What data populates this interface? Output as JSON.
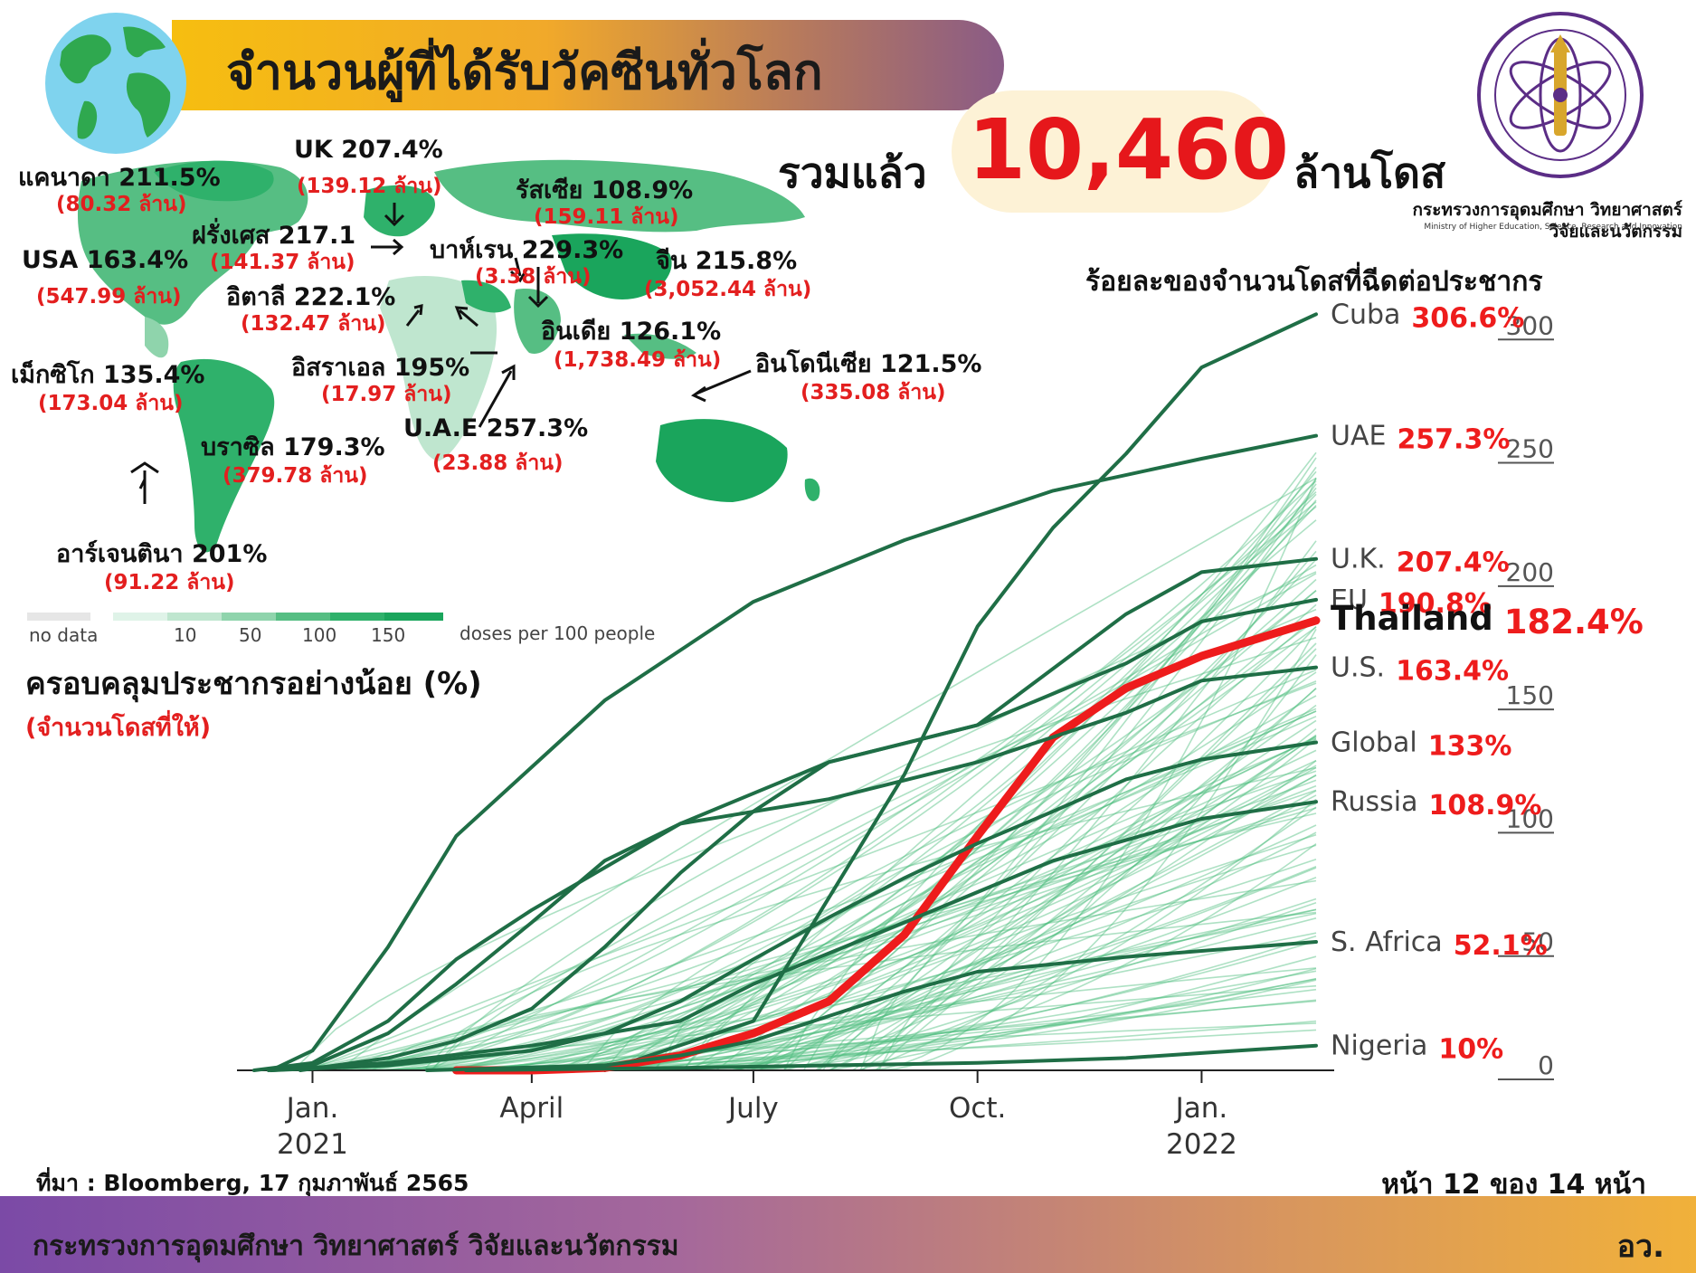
{
  "header": {
    "title": "จำนวนผู้ที่ได้รับวัคซีนทั่วโลก",
    "total_prefix": "รวมแล้ว",
    "total_value": "10,460",
    "total_suffix": "ล้านโดส"
  },
  "ministry": {
    "name_th": "กระทรวงการอุดมศึกษา วิทยาศาสตร์ วิจัยและนวัตกรรม",
    "name_en": "Ministry of Higher Education, Science, Research and Innovation"
  },
  "map": {
    "countries": [
      {
        "name": "แคนาดา",
        "pct": "211.5%",
        "doses": "(80.32 ล้าน)"
      },
      {
        "name": "UK",
        "pct": "207.4%",
        "doses": "(139.12 ล้าน)"
      },
      {
        "name": "รัสเซีย",
        "pct": "108.9%",
        "doses": "(159.11 ล้าน)"
      },
      {
        "name": "ฝรั่งเศส",
        "pct": "217.1",
        "doses": "(141.37 ล้าน)"
      },
      {
        "name": "บาห์เรน",
        "pct": "229.3%",
        "doses": "(3.38 ล้าน)"
      },
      {
        "name": "จีน",
        "pct": "215.8%",
        "doses": "(3,052.44 ล้าน)"
      },
      {
        "name": "USA",
        "pct": "163.4%",
        "doses": "(547.99 ล้าน)"
      },
      {
        "name": "อิตาลี",
        "pct": "222.1%",
        "doses": "(132.47 ล้าน)"
      },
      {
        "name": "อินเดีย",
        "pct": "126.1%",
        "doses": "(1,738.49 ล้าน)"
      },
      {
        "name": "อิสราเอล",
        "pct": "195%",
        "doses": "(17.97 ล้าน)"
      },
      {
        "name": "อินโดนีเซีย",
        "pct": "121.5%",
        "doses": "(335.08 ล้าน)"
      },
      {
        "name": "เม็กซิโก",
        "pct": "135.4%",
        "doses": "(173.04 ล้าน)"
      },
      {
        "name": "U.A.E",
        "pct": "257.3%",
        "doses": "(23.88 ล้าน)"
      },
      {
        "name": "บราซิล",
        "pct": "179.3%",
        "doses": "(379.78 ล้าน)"
      },
      {
        "name": "อาร์เจนตินา",
        "pct": "201%",
        "doses": "(91.22 ล้าน)"
      }
    ],
    "legend": {
      "no_data": "no data",
      "ticks": [
        "10",
        "50",
        "100",
        "150"
      ],
      "unit": "doses per 100 people",
      "colors": [
        "#e6e6e6",
        "#dff3e8",
        "#bfe6cf",
        "#8fd4ac",
        "#56be83",
        "#2fb16b",
        "#1aa55c"
      ]
    }
  },
  "coverage": {
    "title": "ครอบคลุมประชากรอย่างน้อย (%)",
    "subtitle": "(จำนวนโดสที่ให้)"
  },
  "chart_data": {
    "type": "line",
    "title": "ร้อยละของจำนวนโดสที่ฉีดต่อประชากร",
    "x_ticks": [
      {
        "label": "Jan.\n2021",
        "x": "2021-01-01"
      },
      {
        "label": "April",
        "x": "2021-04-01"
      },
      {
        "label": "July",
        "x": "2021-07-01"
      },
      {
        "label": "Oct.",
        "x": "2021-10-01"
      },
      {
        "label": "Jan.\n2022",
        "x": "2022-01-01"
      }
    ],
    "y_ticks": [
      0,
      50,
      100,
      150,
      200,
      250,
      300
    ],
    "ylim": [
      0,
      310
    ],
    "xlim": [
      "2020-12-01",
      "2022-02-17"
    ],
    "highlight_color": "#ee1c1c",
    "series": [
      {
        "name": "Cuba",
        "value_label": "306.6%",
        "points": [
          [
            "2021-05-01",
            0
          ],
          [
            "2021-07-01",
            20
          ],
          [
            "2021-08-01",
            70
          ],
          [
            "2021-09-01",
            120
          ],
          [
            "2021-10-01",
            180
          ],
          [
            "2021-11-01",
            220
          ],
          [
            "2021-12-01",
            250
          ],
          [
            "2022-01-01",
            285
          ],
          [
            "2022-02-17",
            306.6
          ]
        ]
      },
      {
        "name": "UAE",
        "value_label": "257.3%",
        "points": [
          [
            "2020-12-15",
            0
          ],
          [
            "2021-01-01",
            8
          ],
          [
            "2021-02-01",
            50
          ],
          [
            "2021-03-01",
            95
          ],
          [
            "2021-05-01",
            150
          ],
          [
            "2021-07-01",
            190
          ],
          [
            "2021-09-01",
            215
          ],
          [
            "2021-11-01",
            235
          ],
          [
            "2022-01-01",
            248
          ],
          [
            "2022-02-17",
            257.3
          ]
        ]
      },
      {
        "name": "U.K.",
        "value_label": "207.4%",
        "points": [
          [
            "2020-12-08",
            0
          ],
          [
            "2021-01-01",
            3
          ],
          [
            "2021-02-01",
            20
          ],
          [
            "2021-03-01",
            45
          ],
          [
            "2021-04-01",
            65
          ],
          [
            "2021-06-01",
            100
          ],
          [
            "2021-08-01",
            125
          ],
          [
            "2021-10-01",
            140
          ],
          [
            "2021-12-01",
            185
          ],
          [
            "2022-01-01",
            202
          ],
          [
            "2022-02-17",
            207.4
          ]
        ]
      },
      {
        "name": "EU",
        "value_label": "190.8%",
        "points": [
          [
            "2020-12-27",
            0
          ],
          [
            "2021-02-01",
            5
          ],
          [
            "2021-03-01",
            12
          ],
          [
            "2021-04-01",
            25
          ],
          [
            "2021-05-01",
            50
          ],
          [
            "2021-06-01",
            80
          ],
          [
            "2021-07-01",
            105
          ],
          [
            "2021-08-01",
            125
          ],
          [
            "2021-10-01",
            140
          ],
          [
            "2021-12-01",
            165
          ],
          [
            "2022-01-01",
            182
          ],
          [
            "2022-02-17",
            190.8
          ]
        ]
      },
      {
        "name": "Thailand",
        "value_label": "182.4%",
        "highlight": true,
        "points": [
          [
            "2021-03-01",
            0
          ],
          [
            "2021-04-01",
            0
          ],
          [
            "2021-05-01",
            1
          ],
          [
            "2021-06-01",
            6
          ],
          [
            "2021-07-01",
            15
          ],
          [
            "2021-08-01",
            28
          ],
          [
            "2021-09-01",
            55
          ],
          [
            "2021-10-01",
            95
          ],
          [
            "2021-11-01",
            135
          ],
          [
            "2021-12-01",
            155
          ],
          [
            "2022-01-01",
            168
          ],
          [
            "2022-02-17",
            182.4
          ]
        ]
      },
      {
        "name": "U.S.",
        "value_label": "163.4%",
        "points": [
          [
            "2020-12-14",
            0
          ],
          [
            "2021-01-01",
            2
          ],
          [
            "2021-02-01",
            15
          ],
          [
            "2021-03-01",
            35
          ],
          [
            "2021-04-01",
            60
          ],
          [
            "2021-05-01",
            85
          ],
          [
            "2021-06-01",
            100
          ],
          [
            "2021-08-01",
            110
          ],
          [
            "2021-10-01",
            125
          ],
          [
            "2021-12-01",
            145
          ],
          [
            "2022-01-01",
            158
          ],
          [
            "2022-02-17",
            163.4
          ]
        ]
      },
      {
        "name": "Global",
        "value_label": "133%",
        "points": [
          [
            "2020-12-15",
            0
          ],
          [
            "2021-02-01",
            2
          ],
          [
            "2021-04-01",
            8
          ],
          [
            "2021-05-01",
            15
          ],
          [
            "2021-06-01",
            28
          ],
          [
            "2021-07-01",
            45
          ],
          [
            "2021-08-01",
            62
          ],
          [
            "2021-09-01",
            78
          ],
          [
            "2021-10-01",
            92
          ],
          [
            "2021-11-01",
            105
          ],
          [
            "2021-12-01",
            118
          ],
          [
            "2022-01-01",
            126
          ],
          [
            "2022-02-17",
            133
          ]
        ]
      },
      {
        "name": "Russia",
        "value_label": "108.9%",
        "points": [
          [
            "2020-12-15",
            0
          ],
          [
            "2021-02-01",
            3
          ],
          [
            "2021-04-01",
            10
          ],
          [
            "2021-06-01",
            20
          ],
          [
            "2021-07-01",
            35
          ],
          [
            "2021-09-01",
            60
          ],
          [
            "2021-11-01",
            85
          ],
          [
            "2022-01-01",
            102
          ],
          [
            "2022-02-17",
            108.9
          ]
        ]
      },
      {
        "name": "S. Africa",
        "value_label": "52.1%",
        "points": [
          [
            "2021-02-17",
            0
          ],
          [
            "2021-05-01",
            2
          ],
          [
            "2021-06-01",
            6
          ],
          [
            "2021-07-01",
            12
          ],
          [
            "2021-08-01",
            22
          ],
          [
            "2021-09-01",
            32
          ],
          [
            "2021-10-01",
            40
          ],
          [
            "2021-12-01",
            46
          ],
          [
            "2022-02-17",
            52.1
          ]
        ]
      },
      {
        "name": "Nigeria",
        "value_label": "10%",
        "points": [
          [
            "2021-03-05",
            0
          ],
          [
            "2021-06-01",
            1
          ],
          [
            "2021-08-01",
            2
          ],
          [
            "2021-10-01",
            3
          ],
          [
            "2021-12-01",
            5
          ],
          [
            "2022-01-01",
            7
          ],
          [
            "2022-02-17",
            10
          ]
        ]
      }
    ]
  },
  "footer": {
    "source": "ที่มา : Bloomberg, 17 กุมภาพันธ์ 2565",
    "page": "หน้า 12 ของ 14 หน้า",
    "ministry": "กระทรวงการอุดมศึกษา วิทยาศาสตร์ วิจัยและนวัตกรรม",
    "right": "อว."
  }
}
